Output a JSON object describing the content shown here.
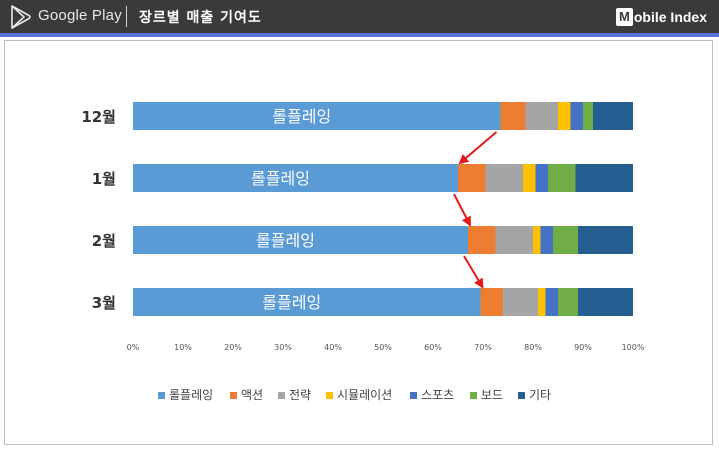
{
  "header": {
    "brand": "Google Play",
    "title": "장르별 매출 기여도",
    "logo_mark": "M",
    "logo_rest": "obile Index",
    "background_color": "#3a3a3a",
    "accent_color": "#5a6fd8"
  },
  "chart_data": {
    "type": "bar",
    "orientation": "horizontal",
    "stacked": true,
    "percent": true,
    "categories": [
      "12월",
      "1월",
      "2월",
      "3월"
    ],
    "series": [
      {
        "name": "롤플레잉",
        "color": "#5b9bd5",
        "values": [
          73.5,
          65,
          67,
          69.5
        ]
      },
      {
        "name": "액션",
        "color": "#ed7d31",
        "values": [
          5,
          5.5,
          5.5,
          4.5
        ]
      },
      {
        "name": "전략",
        "color": "#a5a5a5",
        "values": [
          6.5,
          7.5,
          7.5,
          7
        ]
      },
      {
        "name": "시뮬레이션",
        "color": "#ffc000",
        "values": [
          2.5,
          2.5,
          1.5,
          1.5
        ]
      },
      {
        "name": "스포츠",
        "color": "#4472c4",
        "values": [
          2.5,
          2.5,
          2.5,
          2.5
        ]
      },
      {
        "name": "보드",
        "color": "#70ad47",
        "values": [
          2,
          5.5,
          5,
          4
        ]
      },
      {
        "name": "기타",
        "color": "#255e91",
        "values": [
          8,
          11.5,
          11,
          11
        ]
      }
    ],
    "bar_label": "롤플레잉",
    "xlim": [
      0,
      100
    ],
    "x_ticks": [
      "0%",
      "10%",
      "20%",
      "30%",
      "40%",
      "50%",
      "60%",
      "70%",
      "80%",
      "90%",
      "100%"
    ],
    "legend": "bottom",
    "grid": false,
    "annotations": "red arrows tracing the right end of the 롤플레잉 segment from 12월 to 3월",
    "arrow_color": "#e31a1c"
  }
}
